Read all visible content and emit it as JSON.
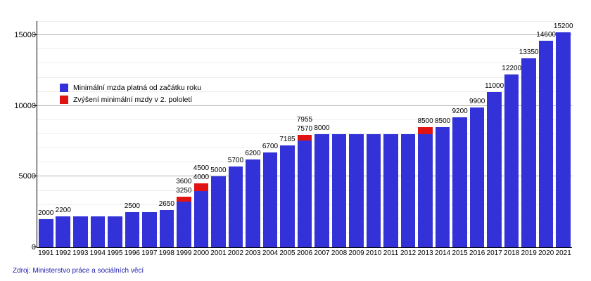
{
  "chart_data": {
    "type": "bar",
    "title": "",
    "xlabel": "",
    "ylabel": "",
    "categories": [
      "1991",
      "1992",
      "1993",
      "1994",
      "1995",
      "1996",
      "1997",
      "1998",
      "1999",
      "2000",
      "2001",
      "2002",
      "2003",
      "2004",
      "2005",
      "2006",
      "2007",
      "2008",
      "2009",
      "2010",
      "2011",
      "2012",
      "2013",
      "2014",
      "2015",
      "2016",
      "2017",
      "2018",
      "2019",
      "2020",
      "2021"
    ],
    "series": [
      {
        "name": "Minimální mzda platná od začátku roku",
        "color": "#3232d8",
        "values": [
          2000,
          2200,
          2200,
          2200,
          2200,
          2500,
          2500,
          2650,
          3250,
          4000,
          5000,
          5700,
          6200,
          6700,
          7185,
          7570,
          8000,
          8000,
          8000,
          8000,
          8000,
          8000,
          8000,
          8500,
          9200,
          9900,
          11000,
          12200,
          13350,
          14600,
          15200
        ]
      },
      {
        "name": "Zvýšení minimální mzdy v 2. pololetí",
        "color": "#e11212",
        "values": [
          0,
          0,
          0,
          0,
          0,
          0,
          0,
          0,
          350,
          500,
          0,
          0,
          0,
          0,
          0,
          385,
          0,
          0,
          0,
          0,
          0,
          0,
          500,
          0,
          0,
          0,
          0,
          0,
          0,
          0,
          0
        ]
      }
    ],
    "bar_labels": [
      [
        "2000"
      ],
      [
        "2200"
      ],
      [],
      [],
      [],
      [
        "2500"
      ],
      [],
      [
        "2650"
      ],
      [
        "3600",
        "3250"
      ],
      [
        "4500",
        "4000"
      ],
      [
        "5000"
      ],
      [
        "5700"
      ],
      [
        "6200"
      ],
      [
        "6700"
      ],
      [
        "7185"
      ],
      [
        "7955",
        "7570"
      ],
      [
        "8000"
      ],
      [],
      [],
      [],
      [],
      [],
      [
        "8500"
      ],
      [
        "8500"
      ],
      [
        "9200"
      ],
      [
        "9900"
      ],
      [
        "11000"
      ],
      [
        "12200"
      ],
      [
        "13350"
      ],
      [
        "14600"
      ],
      [
        "15200"
      ]
    ],
    "ylim": [
      0,
      16000
    ],
    "yticks": [
      0,
      5000,
      10000,
      15000
    ],
    "grid_step": 1000,
    "grid": true,
    "legend_position": "inside-upper-left"
  },
  "source_note": "Zdroj: Ministerstvo práce a sociálních věcí"
}
